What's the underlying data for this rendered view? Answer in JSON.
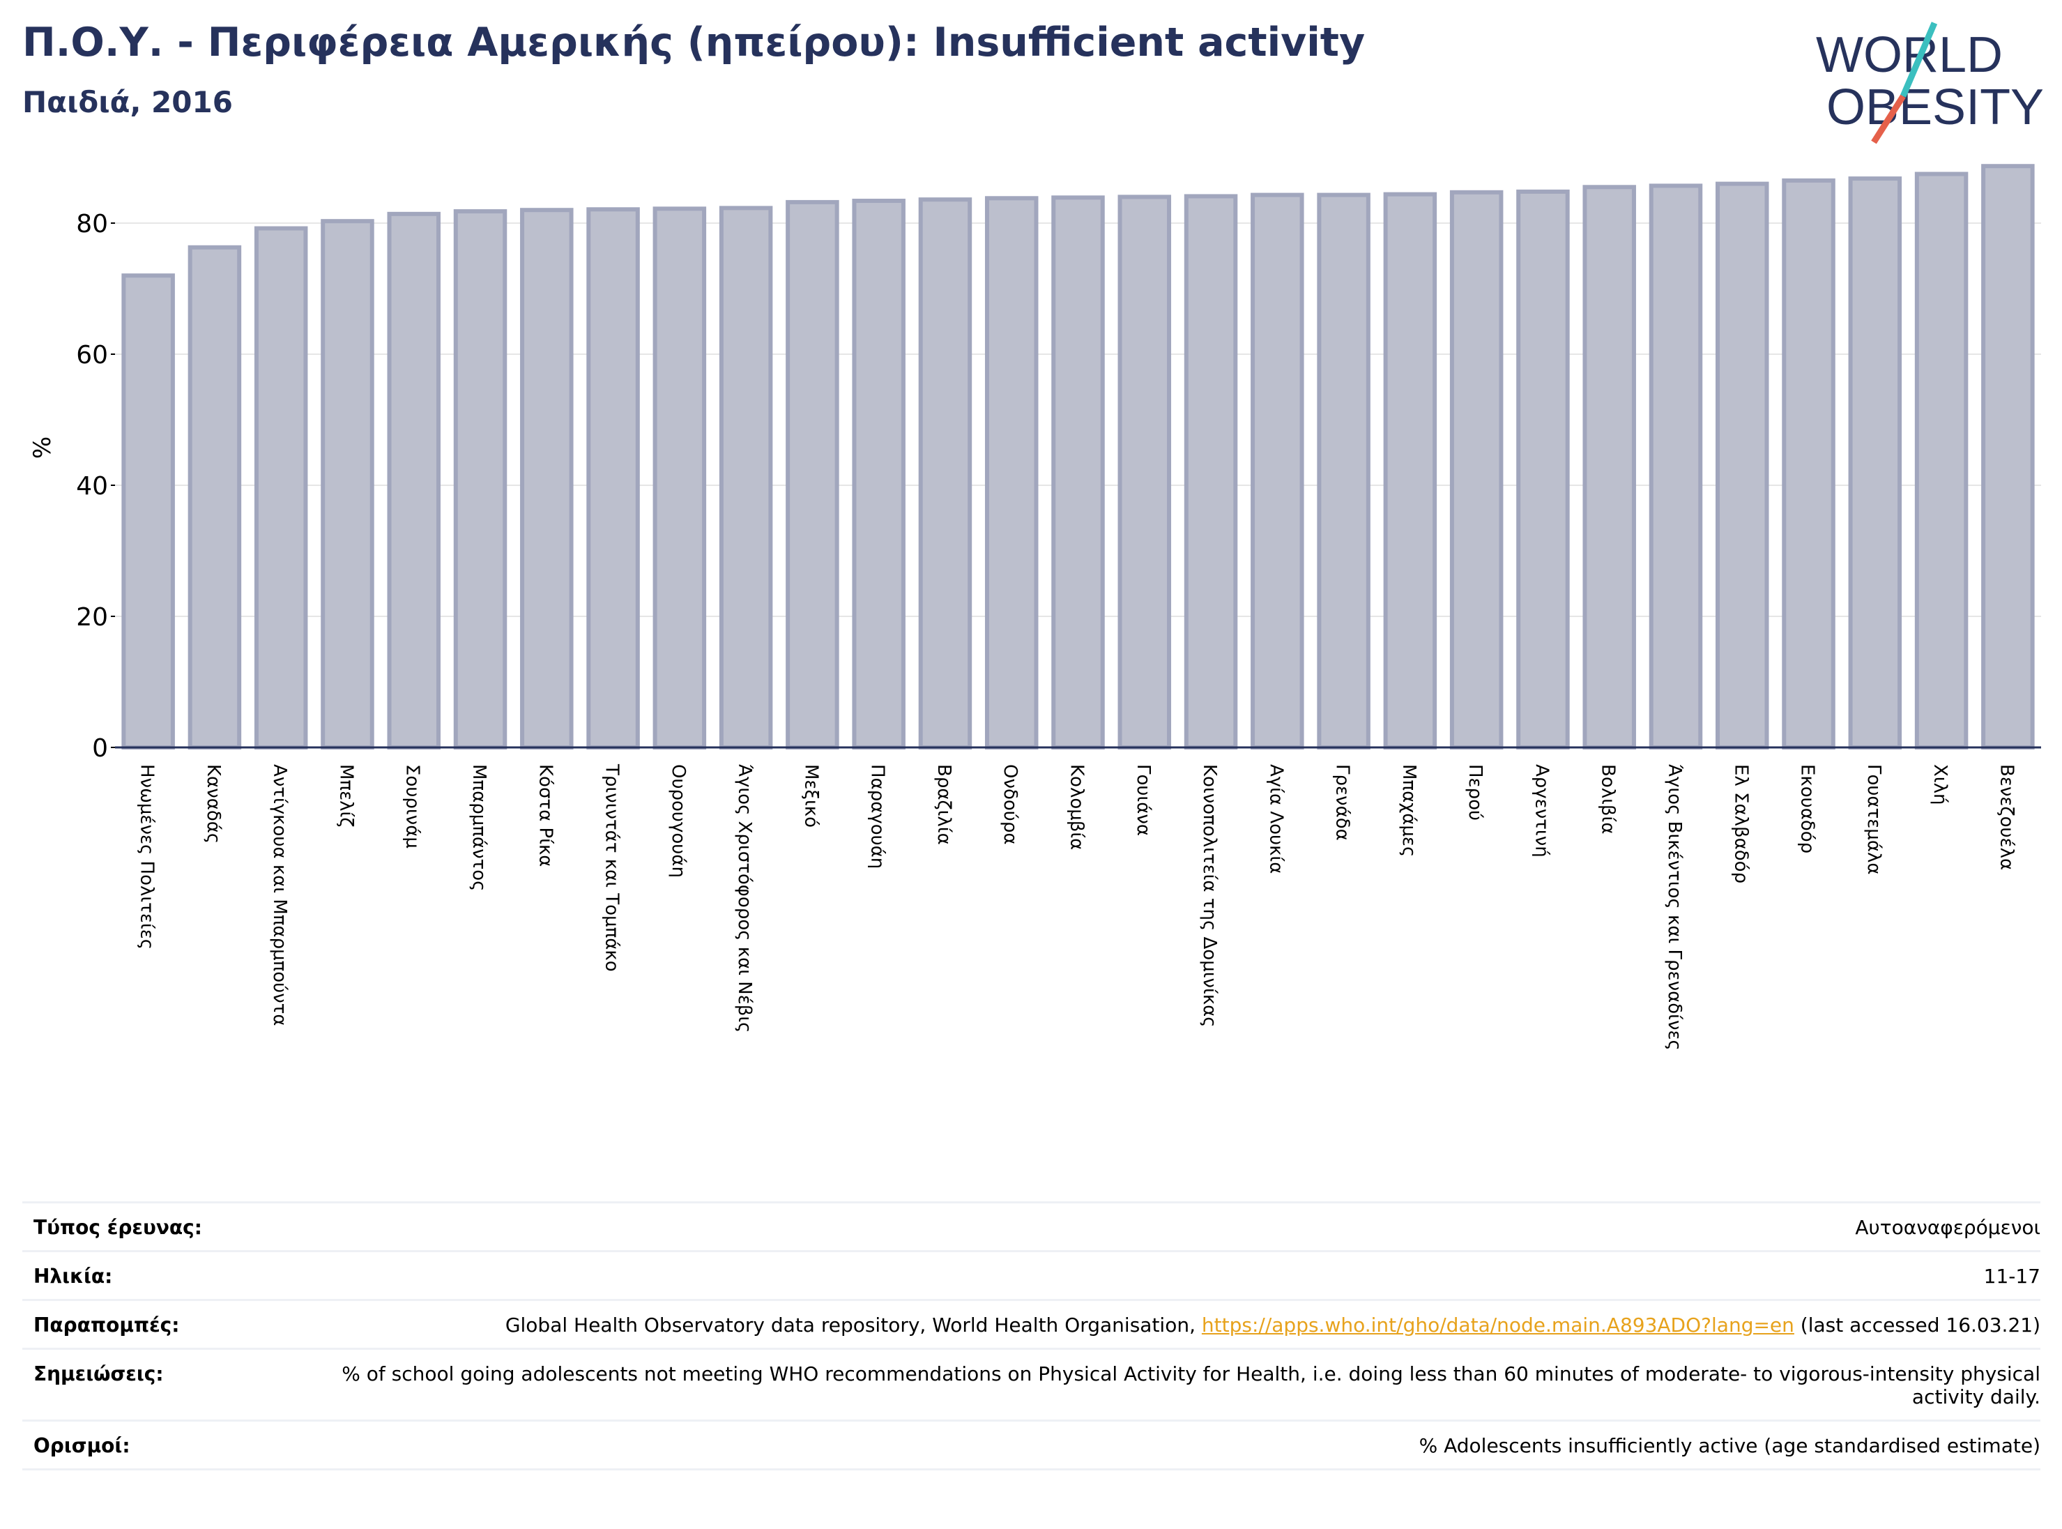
{
  "title": "Π.Ο.Υ. - Περιφέρεια Αμερικής (ηπείρου): Insufficient activity",
  "subtitle": "Παιδιά, 2016",
  "logo": {
    "line1": "WORLD",
    "line2": "OBESITY",
    "colors": {
      "text": "#26325c",
      "slash_teal": "#3bbfbf",
      "slash_red": "#e5604a"
    }
  },
  "colors": {
    "bar_fill": "#bcbfcd",
    "bar_stroke": "#a1a6bd",
    "title": "#26325c",
    "grid": "#e6e6e6",
    "link": "#e7a21c"
  },
  "chart_data": {
    "type": "bar",
    "ylabel": "%",
    "ylim": [
      0,
      90
    ],
    "yticks": [
      0,
      20,
      40,
      60,
      80
    ],
    "grid": true,
    "categories": [
      "Ηνωμένες Πολιτείες",
      "Καναδάς",
      "Αντίγκουα και Μπαρμπούντα",
      "Μπελίζ",
      "Σουρινάμ",
      "Μπαρμπάντος",
      "Κόστα Ρίκα",
      "Τρινιντάτ και Τομπάκο",
      "Ουρουγουάη",
      "Άγιος Χριστόφορος και Νέβις",
      "Μεξικό",
      "Παραγουάη",
      "Βραζιλία",
      "Ονδούρα",
      "Κολομβία",
      "Γουιάνα",
      "Κοινοπολιτεία της Δομινίκας",
      "Αγία Λουκία",
      "Γρενάδα",
      "Μπαχάμες",
      "Περού",
      "Αργεντινή",
      "Βολιβία",
      "Άγιος Βικέντιος και Γρεναδίνες",
      "Ελ Σαλβαδόρ",
      "Εκουαδόρ",
      "Γουατεμάλα",
      "Χιλή",
      "Βενεζουέλα"
    ],
    "values": [
      72.0,
      76.3,
      79.2,
      80.3,
      81.4,
      81.8,
      82.0,
      82.1,
      82.2,
      82.3,
      83.2,
      83.4,
      83.6,
      83.8,
      83.9,
      84.0,
      84.1,
      84.3,
      84.3,
      84.4,
      84.7,
      84.8,
      85.5,
      85.7,
      86.0,
      86.5,
      86.8,
      87.5,
      88.7
    ]
  },
  "info": [
    {
      "label": "Τύπος έρευνας:",
      "value": "Αυτοαναφερόμενοι"
    },
    {
      "label": "Ηλικία:",
      "value": "11-17"
    },
    {
      "label": "Παραπομπές:",
      "value_before": "Global Health Observatory data repository, World Health Organisation, ",
      "link": "https://apps.who.int/gho/data/node.main.A893ADO?lang=en",
      "value_after": " (last accessed 16.03.21)"
    },
    {
      "label": "Σημειώσεις:",
      "value": "% of school going adolescents not meeting WHO recommendations on Physical Activity for Health, i.e. doing less than 60 minutes of moderate- to vigorous-intensity physical activity daily."
    },
    {
      "label": "Ορισμοί:",
      "value": "% Adolescents insufficiently active (age standardised estimate)"
    }
  ]
}
